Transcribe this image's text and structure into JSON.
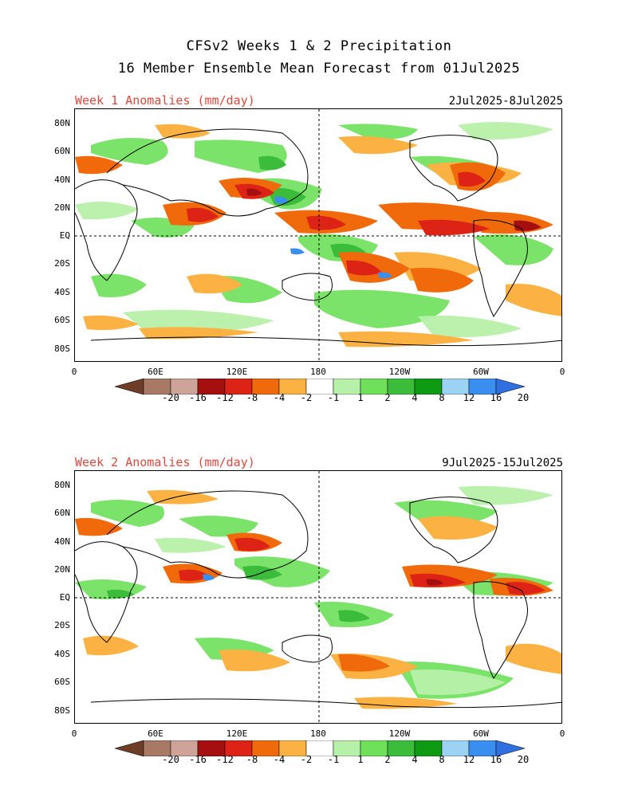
{
  "header": {
    "line1": "CFSv2 Weeks 1 & 2 Precipitation",
    "line2": "16 Member Ensemble Mean Forecast from 01Jul2025"
  },
  "panels": [
    {
      "label": "Week 1 Anomalies (mm/day)",
      "dates": "2Jul2025-8Jul2025"
    },
    {
      "label": "Week 2 Anomalies (mm/day)",
      "dates": "9Jul2025-15Jul2025"
    }
  ],
  "axes": {
    "lat_ticks": [
      "80N",
      "60N",
      "40N",
      "20N",
      "EQ",
      "20S",
      "40S",
      "60S",
      "80S"
    ],
    "lon_ticks": [
      "0",
      "60E",
      "120E",
      "180",
      "120W",
      "60W",
      "0"
    ]
  },
  "colorbar": {
    "labels": [
      "-20",
      "-16",
      "-12",
      "-8",
      "-4",
      "-2",
      "-1",
      "1",
      "2",
      "4",
      "8",
      "12",
      "16",
      "20"
    ],
    "colors": [
      "#6e3d28",
      "#a87a66",
      "#cda497",
      "#a50f0f",
      "#dd2216",
      "#f06a0c",
      "#fbb242",
      "#ffffff",
      "#b7f0a9",
      "#6ee05a",
      "#3bbd3b",
      "#0f9a14",
      "#9cd3f4",
      "#3a8ef0",
      "#2f6fe0"
    ]
  }
}
